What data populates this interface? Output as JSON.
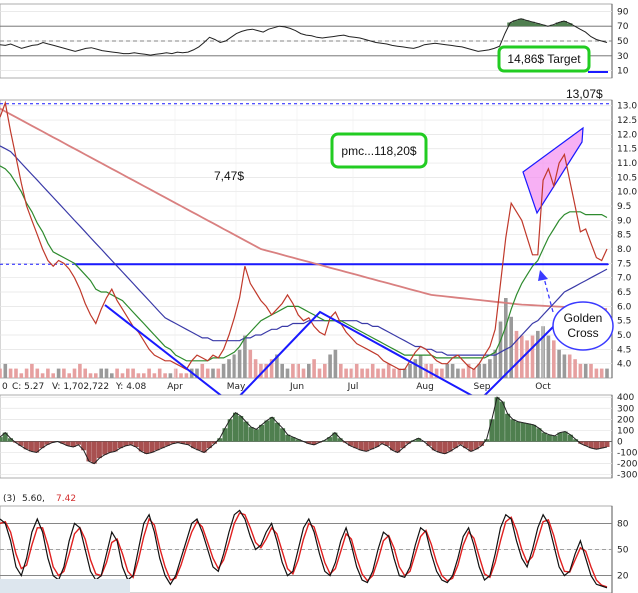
{
  "chart_data": [
    {
      "panel": "rsi",
      "type": "line",
      "y_ticks": [
        "90",
        "70",
        "50",
        "30",
        "10"
      ],
      "ylim": [
        0,
        100
      ],
      "reference_lines": [
        70,
        50,
        30
      ],
      "values": [
        45,
        44,
        46,
        43,
        40,
        42,
        44,
        45,
        48,
        46,
        44,
        42,
        40,
        38,
        36,
        38,
        40,
        41,
        39,
        37,
        36,
        35,
        34,
        33,
        33,
        34,
        33,
        32,
        31,
        32,
        33,
        34,
        33,
        35,
        34,
        35,
        38,
        42,
        48,
        55,
        52,
        48,
        50,
        55,
        60,
        63,
        65,
        66,
        64,
        62,
        66,
        68,
        70,
        69,
        67,
        64,
        60,
        58,
        57,
        55,
        54,
        55,
        56,
        57,
        58,
        56,
        55,
        54,
        52,
        50,
        48,
        47,
        46,
        44,
        43,
        42,
        41,
        40,
        42,
        45,
        46,
        47,
        46,
        45,
        44,
        43,
        42,
        40,
        38,
        36,
        37,
        38,
        40,
        43,
        60,
        75,
        78,
        80,
        78,
        76,
        74,
        72,
        70,
        72,
        75,
        77,
        74,
        70,
        66,
        62,
        56,
        52,
        50,
        48
      ],
      "fill_above": 70,
      "fill_below": 30
    },
    {
      "panel": "price",
      "type": "line",
      "x_labels": [
        "Apr",
        "May",
        "Jun",
        "Jul",
        "Aug",
        "Sep",
        "Oct"
      ],
      "y_ticks": [
        "13.0",
        "12.5",
        "12.0",
        "11.5",
        "11.0",
        "10.5",
        "10.0",
        "9.5",
        "9.0",
        "8.5",
        "8.0",
        "7.5",
        "7.0",
        "6.5",
        "6.0",
        "5.5",
        "5.0",
        "4.5",
        "4.0"
      ],
      "ylim": [
        3.5,
        13.2
      ],
      "info_left": "0",
      "info_c": "C: 5.27",
      "info_v": "V: 1,702,722",
      "info_y": "Y: 4.08",
      "series": [
        {
          "values": [
            12.6,
            13.1,
            12.1,
            11.2,
            10.3,
            9.5,
            9.0,
            8.5,
            8.0,
            7.6,
            7.4,
            7.6,
            7.5,
            7.3,
            7.0,
            6.6,
            6.1,
            5.7,
            5.4,
            5.9,
            6.3,
            6.6,
            6.2,
            5.9,
            5.6,
            5.3,
            5.1,
            4.8,
            4.5,
            4.3,
            4.2,
            4.1,
            4.1,
            4.0,
            3.9,
            3.8,
            4.1,
            4.3,
            4.2,
            4.1,
            4.3,
            4.2,
            4.5,
            5.0,
            5.6,
            6.3,
            7.4,
            6.8,
            6.5,
            6.2,
            6.0,
            5.7,
            5.9,
            6.1,
            6.4,
            6.1,
            5.7,
            5.5,
            5.6,
            5.3,
            5.1,
            5.0,
            5.6,
            5.8,
            5.4,
            5.1,
            4.9,
            4.7,
            4.6,
            4.5,
            4.4,
            4.3,
            4.1,
            4.0,
            3.9,
            3.8,
            3.8,
            4.1,
            4.4,
            4.6,
            4.5,
            4.3,
            4.1,
            4.0,
            4.0,
            4.2,
            4.3,
            4.1,
            3.9,
            3.8,
            4.0,
            4.3,
            4.6,
            5.2,
            6.8,
            8.4,
            9.6,
            9.3,
            9.0,
            8.4,
            7.8,
            7.8,
            10.4,
            10.8,
            10.2,
            11.0,
            11.3,
            10.4,
            9.5,
            8.6,
            8.7,
            8.2,
            7.7,
            7.6,
            8.0
          ]
        },
        {
          "values": [
            10.9,
            10.8,
            10.6,
            10.3,
            10.0,
            9.6,
            9.3,
            8.9,
            8.6,
            8.2,
            7.9,
            7.8,
            7.7,
            7.6,
            7.5,
            7.3,
            7.1,
            6.9,
            6.6,
            6.5,
            6.5,
            6.4,
            6.3,
            6.2,
            6.0,
            5.8,
            5.6,
            5.4,
            5.2,
            5.0,
            4.8,
            4.6,
            4.5,
            4.3,
            4.2,
            4.1,
            4.1,
            4.1,
            4.1,
            4.1,
            4.2,
            4.2,
            4.2,
            4.3,
            4.4,
            4.6,
            4.9,
            5.1,
            5.3,
            5.5,
            5.6,
            5.7,
            5.8,
            5.9,
            6.0,
            6.0,
            6.0,
            5.9,
            5.8,
            5.7,
            5.6,
            5.5,
            5.5,
            5.5,
            5.5,
            5.4,
            5.3,
            5.2,
            5.1,
            5.0,
            4.9,
            4.8,
            4.7,
            4.6,
            4.5,
            4.4,
            4.3,
            4.3,
            4.3,
            4.3,
            4.3,
            4.3,
            4.2,
            4.2,
            4.2,
            4.2,
            4.2,
            4.2,
            4.2,
            4.2,
            4.2,
            4.2,
            4.3,
            4.4,
            4.8,
            5.3,
            5.9,
            6.4,
            6.8,
            7.1,
            7.4,
            7.6,
            8.0,
            8.4,
            8.7,
            9.0,
            9.2,
            9.3,
            9.3,
            9.3,
            9.2,
            9.2,
            9.2,
            9.2,
            9.1
          ]
        },
        {
          "values": [
            11.6,
            11.5,
            11.4,
            11.2,
            11.0,
            10.8,
            10.6,
            10.4,
            10.2,
            10.0,
            9.8,
            9.6,
            9.4,
            9.2,
            9.0,
            8.8,
            8.6,
            8.4,
            8.2,
            8.0,
            7.8,
            7.6,
            7.4,
            7.2,
            7.0,
            6.8,
            6.6,
            6.4,
            6.2,
            6.0,
            5.8,
            5.6,
            5.5,
            5.4,
            5.3,
            5.2,
            5.1,
            5.0,
            4.9,
            4.9,
            4.8,
            4.8,
            4.8,
            4.8,
            4.8,
            4.8,
            4.9,
            4.9,
            5.0,
            5.0,
            5.1,
            5.2,
            5.2,
            5.3,
            5.3,
            5.4,
            5.4,
            5.4,
            5.5,
            5.5,
            5.5,
            5.5,
            5.5,
            5.5,
            5.5,
            5.5,
            5.5,
            5.5,
            5.4,
            5.4,
            5.3,
            5.3,
            5.2,
            5.1,
            5.0,
            4.9,
            4.8,
            4.7,
            4.6,
            4.6,
            4.5,
            4.5,
            4.4,
            4.4,
            4.3,
            4.3,
            4.3,
            4.3,
            4.3,
            4.3,
            4.3,
            4.3,
            4.3,
            4.3,
            4.4,
            4.5,
            4.6,
            4.8,
            5.0,
            5.2,
            5.4,
            5.5,
            5.7,
            5.9,
            6.1,
            6.3,
            6.5,
            6.6,
            6.7,
            6.8,
            6.9,
            7.0,
            7.1,
            7.2,
            7.3
          ]
        },
        {
          "values": [
            12.9,
            12.8,
            12.7,
            12.6,
            12.5,
            12.4,
            12.3,
            12.2,
            12.1,
            12.0,
            11.9,
            11.8,
            11.7,
            11.6,
            11.5,
            11.4,
            11.3,
            11.2,
            11.1,
            11.0,
            10.9,
            10.8,
            10.7,
            10.6,
            10.5,
            10.4,
            10.3,
            10.2,
            10.1,
            10.0,
            9.9,
            9.8,
            9.7,
            9.6,
            9.5,
            9.4,
            9.3,
            9.2,
            9.1,
            9.0,
            8.9,
            8.8,
            8.7,
            8.6,
            8.5,
            8.4,
            8.3,
            8.2,
            8.1,
            8.0,
            7.95,
            7.9,
            7.85,
            7.8,
            7.75,
            7.7,
            7.65,
            7.6,
            7.55,
            7.5,
            7.45,
            7.4,
            7.35,
            7.3,
            7.25,
            7.2,
            7.15,
            7.1,
            7.05,
            7.0,
            6.95,
            6.9,
            6.85,
            6.8,
            6.75,
            6.7,
            6.65,
            6.6,
            6.55,
            6.5,
            6.45,
            6.4,
            6.38,
            6.36,
            6.34,
            6.32,
            6.3,
            6.28,
            6.26,
            6.24,
            6.22,
            6.2,
            6.18,
            6.16,
            6.14,
            6.12,
            6.1,
            6.08,
            6.06,
            6.05,
            6.04,
            6.03,
            6.02,
            6.01,
            6.0,
            5.99,
            5.98,
            5.97,
            5.96,
            5.95,
            5.94,
            5.93,
            5.92,
            5.91,
            5.9
          ]
        }
      ],
      "volume": [
        2,
        3,
        2,
        2,
        1,
        2,
        3,
        2,
        1,
        2,
        1,
        2,
        2,
        1,
        2,
        3,
        2,
        1,
        1,
        2,
        2,
        1,
        2,
        1,
        2,
        2,
        1,
        1,
        2,
        1,
        2,
        1,
        1,
        2,
        1,
        1,
        2,
        2,
        3,
        2,
        2,
        2,
        3,
        4,
        5,
        6,
        9,
        6,
        4,
        3,
        3,
        4,
        5,
        3,
        2,
        3,
        3,
        2,
        3,
        4,
        2,
        3,
        5,
        6,
        3,
        2,
        2,
        3,
        2,
        2,
        3,
        2,
        2,
        3,
        2,
        2,
        2,
        3,
        4,
        5,
        3,
        3,
        2,
        2,
        3,
        3,
        2,
        2,
        3,
        2,
        3,
        3,
        4,
        6,
        12,
        17,
        13,
        10,
        9,
        8,
        9,
        10,
        11,
        9,
        8,
        6,
        5,
        5,
        4,
        3,
        3,
        3,
        2,
        2,
        2
      ],
      "annotations": {
        "target_level": "13,07$",
        "target_box": "14,86$ Target",
        "resistance_value": "7,47$",
        "pmc_box": "pmc...118,20$",
        "golden_cross": [
          "Golden",
          "Cross"
        ]
      },
      "colors": {
        "price": "#c0392b",
        "ma_fast": "#2e8b2e",
        "ma_mid": "#3a3aa8",
        "ma_slow": "#d98080",
        "trend": "#1a1aff",
        "highlight": "#22cc22",
        "wedge": "#f48ff0"
      }
    },
    {
      "panel": "oscillator",
      "type": "line",
      "y_ticks": [
        "400",
        "300",
        "200",
        "100",
        "0",
        "-100",
        "-200",
        "-300"
      ],
      "ylim": [
        -330,
        420
      ],
      "values": [
        40,
        80,
        30,
        -10,
        -40,
        -70,
        -90,
        -100,
        -60,
        -30,
        -10,
        0,
        -20,
        -40,
        -50,
        -30,
        -80,
        -180,
        -200,
        -150,
        -120,
        -100,
        -90,
        -60,
        -40,
        -30,
        -50,
        -90,
        -110,
        -100,
        -80,
        -60,
        -40,
        -20,
        -10,
        -20,
        -30,
        -60,
        -80,
        -100,
        -60,
        -20,
        30,
        120,
        200,
        260,
        230,
        180,
        130,
        110,
        150,
        190,
        220,
        170,
        120,
        60,
        40,
        20,
        0,
        -20,
        -30,
        -10,
        10,
        40,
        80,
        30,
        -10,
        -40,
        -60,
        -80,
        -90,
        -70,
        -50,
        -20,
        -40,
        -80,
        -100,
        -60,
        -20,
        10,
        30,
        0,
        -40,
        -80,
        -100,
        -110,
        -90,
        -60,
        -30,
        -60,
        -90,
        -70,
        -40,
        20,
        200,
        400,
        360,
        250,
        200,
        180,
        170,
        160,
        150,
        120,
        80,
        60,
        50,
        80,
        90,
        60,
        20,
        -20,
        -40,
        -60,
        -70,
        -60,
        -50
      ]
    },
    {
      "panel": "stochastic",
      "type": "line",
      "header_prefix": "(3)",
      "header_k": "5.60,",
      "header_d": "7.42",
      "y_ticks": [
        "80",
        "50",
        "20"
      ],
      "ylim": [
        0,
        100
      ],
      "series": [
        {
          "values": [
            85,
            80,
            60,
            30,
            20,
            40,
            70,
            85,
            70,
            40,
            20,
            15,
            30,
            60,
            80,
            75,
            50,
            25,
            15,
            20,
            45,
            70,
            60,
            30,
            15,
            20,
            50,
            80,
            90,
            70,
            40,
            20,
            10,
            20,
            40,
            60,
            80,
            85,
            70,
            50,
            30,
            25,
            45,
            70,
            90,
            95,
            85,
            65,
            50,
            55,
            70,
            80,
            60,
            35,
            20,
            25,
            50,
            75,
            85,
            70,
            45,
            25,
            20,
            35,
            60,
            75,
            55,
            30,
            15,
            12,
            25,
            50,
            70,
            65,
            40,
            20,
            18,
            30,
            55,
            75,
            70,
            45,
            25,
            15,
            12,
            20,
            40,
            65,
            75,
            55,
            30,
            15,
            20,
            45,
            75,
            90,
            85,
            60,
            40,
            30,
            50,
            75,
            90,
            80,
            55,
            30,
            20,
            25,
            45,
            60,
            40,
            20,
            10,
            8,
            6
          ]
        },
        {
          "values": [
            80,
            82,
            70,
            45,
            28,
            32,
            55,
            75,
            75,
            55,
            30,
            20,
            25,
            45,
            68,
            75,
            62,
            38,
            22,
            20,
            35,
            58,
            62,
            45,
            25,
            18,
            38,
            65,
            85,
            78,
            52,
            30,
            15,
            17,
            32,
            52,
            70,
            82,
            76,
            58,
            40,
            28,
            38,
            58,
            80,
            92,
            90,
            75,
            58,
            52,
            62,
            75,
            68,
            48,
            28,
            22,
            38,
            62,
            80,
            76,
            56,
            35,
            22,
            28,
            48,
            68,
            62,
            40,
            22,
            14,
            20,
            38,
            60,
            66,
            52,
            30,
            20,
            25,
            45,
            65,
            72,
            56,
            35,
            20,
            14,
            17,
            32,
            55,
            70,
            63,
            42,
            22,
            18,
            35,
            60,
            82,
            87,
            72,
            50,
            35,
            42,
            62,
            82,
            84,
            66,
            42,
            25,
            24,
            38,
            52,
            48,
            30,
            15,
            9,
            7
          ]
        }
      ]
    }
  ]
}
